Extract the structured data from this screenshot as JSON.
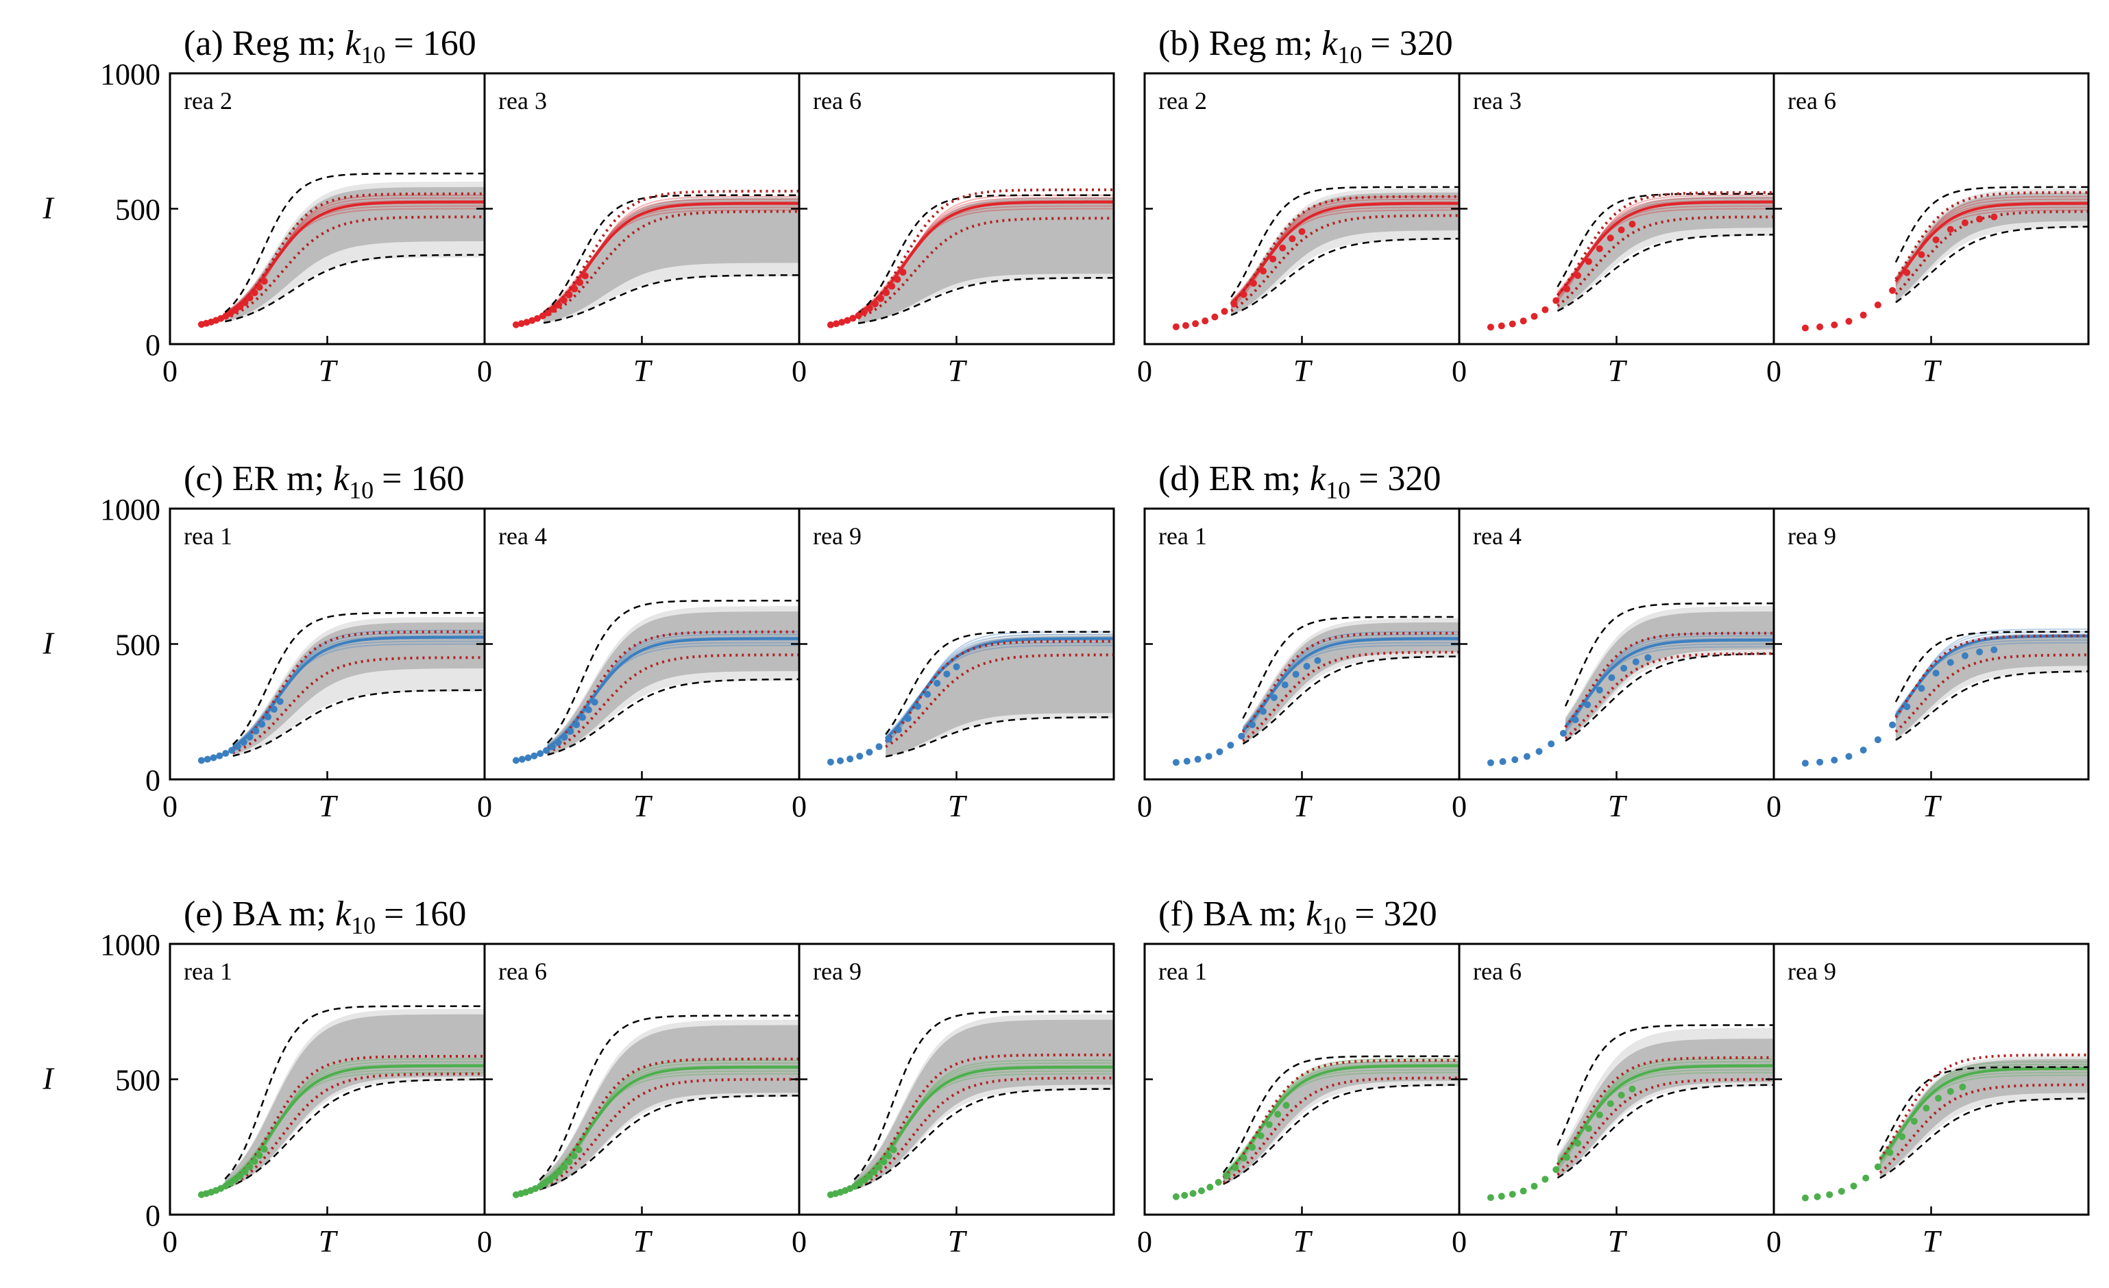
{
  "figure": {
    "y_axis_label": "I",
    "x_axis_label": "T",
    "y_ticks": [
      0,
      500,
      1000
    ],
    "x_tick_label": "0"
  },
  "colors": {
    "Reg": "#e0242a",
    "ER": "#3b7fc0",
    "BA": "#4caf4c",
    "bound": "#000000",
    "ref": "#b22222",
    "band_outer": "#e6e6e6",
    "band_inner": "#bcbcbc"
  },
  "chart_data": [
    {
      "id": "a",
      "type": "line",
      "title_prefix": "(a) Reg m; ",
      "k_label": "k",
      "k_sub": "10",
      "k_value": "= 160",
      "network": "Reg",
      "ylim": [
        0,
        1000
      ],
      "panels": [
        {
          "label": "rea 2",
          "plateau": 525,
          "upper": 630,
          "lower": 330,
          "band_outer": [
            320,
            600
          ],
          "band_inner": [
            380,
            580
          ],
          "ref_hi": 555,
          "ref_lo": 470,
          "obs_end": 0.3
        },
        {
          "label": "rea 3",
          "plateau": 520,
          "upper": 550,
          "lower": 255,
          "band_outer": [
            250,
            545
          ],
          "band_inner": [
            300,
            540
          ],
          "ref_hi": 565,
          "ref_lo": 490,
          "obs_end": 0.32
        },
        {
          "label": "rea 6",
          "plateau": 525,
          "upper": 550,
          "lower": 245,
          "band_outer": [
            240,
            545
          ],
          "band_inner": [
            260,
            540
          ],
          "ref_hi": 570,
          "ref_lo": 465,
          "obs_end": 0.33
        }
      ]
    },
    {
      "id": "b",
      "type": "line",
      "title_prefix": "(b) Reg m; ",
      "k_label": "k",
      "k_sub": "10",
      "k_value": "= 320",
      "network": "Reg",
      "ylim": [
        0,
        1000
      ],
      "panels": [
        {
          "label": "rea 2",
          "plateau": 520,
          "upper": 580,
          "lower": 390,
          "band_outer": [
            385,
            575
          ],
          "band_inner": [
            420,
            560
          ],
          "ref_hi": 545,
          "ref_lo": 475,
          "obs_end": 0.5
        },
        {
          "label": "rea 3",
          "plateau": 525,
          "upper": 555,
          "lower": 405,
          "band_outer": [
            400,
            550
          ],
          "band_inner": [
            430,
            545
          ],
          "ref_hi": 560,
          "ref_lo": 470,
          "obs_end": 0.55
        },
        {
          "label": "rea 6",
          "plateau": 520,
          "upper": 580,
          "lower": 435,
          "band_outer": [
            430,
            575
          ],
          "band_inner": [
            455,
            560
          ],
          "ref_hi": 560,
          "ref_lo": 490,
          "obs_end": 0.7
        }
      ]
    },
    {
      "id": "c",
      "type": "line",
      "title_prefix": "(c) ER m; ",
      "k_label": "k",
      "k_sub": "10",
      "k_value": "= 160",
      "network": "ER",
      "ylim": [
        0,
        1000
      ],
      "panels": [
        {
          "label": "rea 1",
          "plateau": 525,
          "upper": 615,
          "lower": 330,
          "band_outer": [
            325,
            600
          ],
          "band_inner": [
            410,
            580
          ],
          "ref_hi": 545,
          "ref_lo": 450,
          "obs_end": 0.35
        },
        {
          "label": "rea 4",
          "plateau": 520,
          "upper": 660,
          "lower": 370,
          "band_outer": [
            365,
            640
          ],
          "band_inner": [
            400,
            620
          ],
          "ref_hi": 545,
          "ref_lo": 460,
          "obs_end": 0.35
        },
        {
          "label": "rea 9",
          "plateau": 520,
          "upper": 545,
          "lower": 230,
          "band_outer": [
            225,
            540
          ],
          "band_inner": [
            245,
            530
          ],
          "ref_hi": 510,
          "ref_lo": 460,
          "obs_end": 0.5
        }
      ]
    },
    {
      "id": "d",
      "type": "line",
      "title_prefix": "(d) ER m; ",
      "k_label": "k",
      "k_sub": "10",
      "k_value": "= 320",
      "network": "ER",
      "ylim": [
        0,
        1000
      ],
      "panels": [
        {
          "label": "rea 1",
          "plateau": 520,
          "upper": 600,
          "lower": 455,
          "band_outer": [
            450,
            595
          ],
          "band_inner": [
            470,
            580
          ],
          "ref_hi": 540,
          "ref_lo": 470,
          "obs_end": 0.55
        },
        {
          "label": "rea 4",
          "plateau": 515,
          "upper": 650,
          "lower": 465,
          "band_outer": [
            460,
            640
          ],
          "band_inner": [
            480,
            620
          ],
          "ref_hi": 540,
          "ref_lo": 465,
          "obs_end": 0.6
        },
        {
          "label": "rea 9",
          "plateau": 530,
          "upper": 545,
          "lower": 400,
          "band_outer": [
            395,
            540
          ],
          "band_inner": [
            420,
            535
          ],
          "ref_hi": 530,
          "ref_lo": 460,
          "obs_end": 0.7
        }
      ]
    },
    {
      "id": "e",
      "type": "line",
      "title_prefix": "(e) BA m; ",
      "k_label": "k",
      "k_sub": "10",
      "k_value": "= 160",
      "network": "BA",
      "ylim": [
        0,
        1000
      ],
      "panels": [
        {
          "label": "rea 1",
          "plateau": 550,
          "upper": 770,
          "lower": 500,
          "band_outer": [
            495,
            760
          ],
          "band_inner": [
            510,
            740
          ],
          "ref_hi": 585,
          "ref_lo": 520,
          "obs_end": 0.3
        },
        {
          "label": "rea 6",
          "plateau": 545,
          "upper": 735,
          "lower": 440,
          "band_outer": [
            435,
            720
          ],
          "band_inner": [
            450,
            700
          ],
          "ref_hi": 575,
          "ref_lo": 500,
          "obs_end": 0.3
        },
        {
          "label": "rea 9",
          "plateau": 545,
          "upper": 750,
          "lower": 465,
          "band_outer": [
            460,
            740
          ],
          "band_inner": [
            480,
            720
          ],
          "ref_hi": 590,
          "ref_lo": 505,
          "obs_end": 0.3
        }
      ]
    },
    {
      "id": "f",
      "type": "line",
      "title_prefix": "(f) BA m; ",
      "k_label": "k",
      "k_sub": "10",
      "k_value": "= 320",
      "network": "BA",
      "ylim": [
        0,
        1000
      ],
      "panels": [
        {
          "label": "rea 1",
          "plateau": 550,
          "upper": 585,
          "lower": 480,
          "band_outer": [
            475,
            580
          ],
          "band_inner": [
            495,
            570
          ],
          "ref_hi": 570,
          "ref_lo": 505,
          "obs_end": 0.45
        },
        {
          "label": "rea 6",
          "plateau": 550,
          "upper": 700,
          "lower": 480,
          "band_outer": [
            475,
            690
          ],
          "band_inner": [
            490,
            650
          ],
          "ref_hi": 580,
          "ref_lo": 500,
          "obs_end": 0.55
        },
        {
          "label": "rea 9",
          "plateau": 540,
          "upper": 545,
          "lower": 430,
          "band_outer": [
            425,
            585
          ],
          "band_inner": [
            450,
            575
          ],
          "ref_hi": 590,
          "ref_lo": 480,
          "obs_end": 0.6
        }
      ]
    }
  ]
}
